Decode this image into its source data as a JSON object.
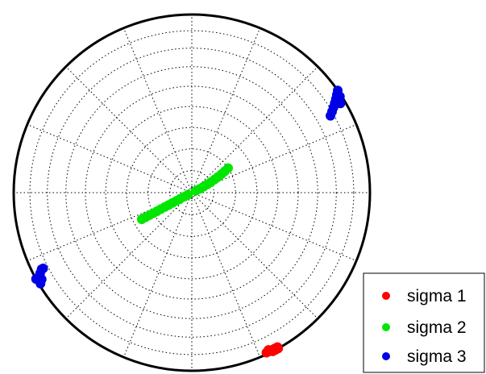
{
  "chart_data": {
    "type": "scatter",
    "projection": "polar stereonet (equal-area)",
    "grid": true,
    "grid_style": "dotted",
    "azimuth_step_deg": 22.5,
    "plunge_rings_deg": [
      10,
      20,
      30,
      40,
      50,
      60,
      70,
      80
    ],
    "center_marker": "plus",
    "legend_position": "bottom-right",
    "series": [
      {
        "name": "sigma 1",
        "color": "#ff0000",
        "points": [
          {
            "trend": 151,
            "plunge": 0
          },
          {
            "trend": 151,
            "plunge": 1
          },
          {
            "trend": 152,
            "plunge": 0
          },
          {
            "trend": 152,
            "plunge": 1
          },
          {
            "trend": 153,
            "plunge": 0
          },
          {
            "trend": 153,
            "plunge": 1
          },
          {
            "trend": 154,
            "plunge": 1
          },
          {
            "trend": 154,
            "plunge": 2
          },
          {
            "trend": 155,
            "plunge": 1
          }
        ]
      },
      {
        "name": "sigma 2",
        "color": "#00e600",
        "points": [
          {
            "trend": 56,
            "plunge": 70
          },
          {
            "trend": 57,
            "plunge": 72
          },
          {
            "trend": 58,
            "plunge": 74
          },
          {
            "trend": 59,
            "plunge": 76
          },
          {
            "trend": 60,
            "plunge": 78
          },
          {
            "trend": 61,
            "plunge": 80
          },
          {
            "trend": 62,
            "plunge": 82
          },
          {
            "trend": 63,
            "plunge": 84
          },
          {
            "trend": 64,
            "plunge": 86
          },
          {
            "trend": 65,
            "plunge": 88
          },
          {
            "trend": 242,
            "plunge": 88
          },
          {
            "trend": 242,
            "plunge": 86
          },
          {
            "trend": 242,
            "plunge": 84
          },
          {
            "trend": 242,
            "plunge": 82
          },
          {
            "trend": 242,
            "plunge": 80
          },
          {
            "trend": 242,
            "plunge": 78
          },
          {
            "trend": 242,
            "plunge": 76
          },
          {
            "trend": 242,
            "plunge": 74
          },
          {
            "trend": 242,
            "plunge": 72
          },
          {
            "trend": 242,
            "plunge": 70
          },
          {
            "trend": 242,
            "plunge": 68
          },
          {
            "trend": 242,
            "plunge": 66
          },
          {
            "trend": 242,
            "plunge": 64
          }
        ]
      },
      {
        "name": "sigma 3",
        "color": "#0000e6",
        "points": [
          {
            "trend": 55,
            "plunge": 0
          },
          {
            "trend": 56,
            "plunge": 2
          },
          {
            "trend": 57,
            "plunge": 4
          },
          {
            "trend": 58,
            "plunge": 6
          },
          {
            "trend": 59,
            "plunge": 8
          },
          {
            "trend": 60,
            "plunge": 10
          },
          {
            "trend": 61,
            "plunge": 12
          },
          {
            "trend": 57,
            "plunge": 1
          },
          {
            "trend": 59,
            "plunge": 3
          },
          {
            "trend": 241,
            "plunge": 0
          },
          {
            "trend": 241,
            "plunge": 2
          },
          {
            "trend": 242,
            "plunge": 4
          },
          {
            "trend": 243,
            "plunge": 6
          },
          {
            "trend": 243,
            "plunge": 7
          },
          {
            "trend": 239,
            "plunge": 1
          },
          {
            "trend": 240,
            "plunge": 3
          }
        ]
      }
    ]
  }
}
